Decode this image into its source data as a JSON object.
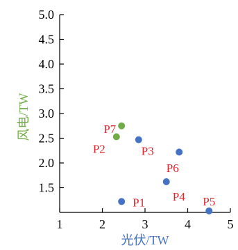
{
  "chart_data": {
    "type": "scatter",
    "xlabel": "光伏/TW",
    "ylabel": "风电/TW",
    "xlim": [
      1,
      5
    ],
    "ylim": [
      1.0,
      5.0
    ],
    "xticks": [
      "1",
      "2",
      "3",
      "4",
      "5"
    ],
    "yticks": [
      "1.5",
      "2.0",
      "2.5",
      "3.0",
      "3.5",
      "4.0",
      "4.5",
      "5.0"
    ],
    "grid": false,
    "points": [
      {
        "x": 2.45,
        "y": 1.22,
        "color": "#4472c4"
      },
      {
        "x": 2.85,
        "y": 2.47,
        "color": "#4472c4"
      },
      {
        "x": 3.8,
        "y": 2.22,
        "color": "#4472c4"
      },
      {
        "x": 3.5,
        "y": 1.62,
        "color": "#4472c4"
      },
      {
        "x": 4.5,
        "y": 1.03,
        "color": "#4472c4"
      },
      {
        "x": 2.33,
        "y": 2.53,
        "color": "#70ad47"
      },
      {
        "x": 2.45,
        "y": 2.75,
        "color": "#70ad47"
      }
    ],
    "annotations": [
      "P1",
      "P2",
      "P3",
      "P4",
      "P5",
      "P6",
      "P7"
    ],
    "colors": {
      "blue": "#4472c4",
      "green": "#70ad47",
      "label_red": "#e0262d",
      "xlabel": "#4472c4",
      "ylabel": "#70ad47"
    }
  }
}
